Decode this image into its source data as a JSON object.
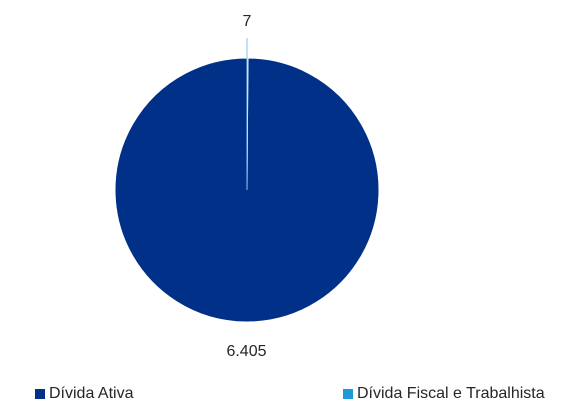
{
  "chart_data": {
    "type": "pie",
    "title": "",
    "slices": [
      {
        "label": "Dívida Ativa",
        "value": 6405,
        "display": "6.405",
        "color": "#003087"
      },
      {
        "label": "Dívida Fiscal e Trabalhista",
        "value": 7,
        "display": "7",
        "color": "#1f9ad6"
      }
    ],
    "legend_position": "bottom"
  }
}
